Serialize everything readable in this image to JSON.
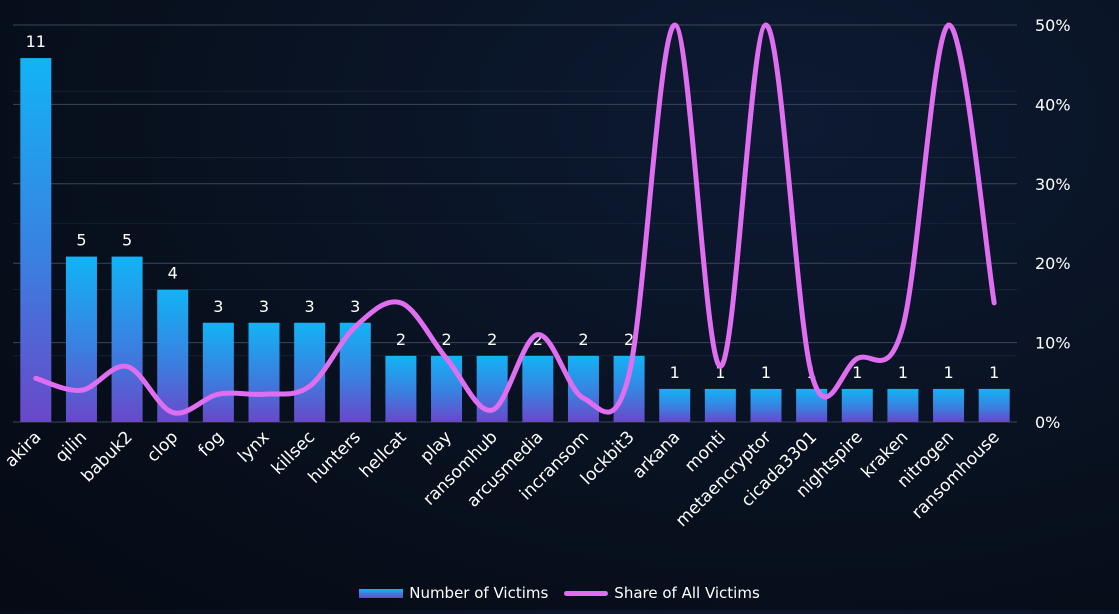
{
  "chart_data": {
    "type": "bar",
    "categories": [
      "akira",
      "qilin",
      "babuk2",
      "clop",
      "fog",
      "lynx",
      "killsec",
      "hunters",
      "hellcat",
      "play",
      "ransomhub",
      "arcusmedia",
      "incransom",
      "lockbit3",
      "arkana",
      "monti",
      "metaencryptor",
      "cicada3301",
      "nightspire",
      "kraken",
      "nitrogen",
      "ransomhouse"
    ],
    "series": [
      {
        "name": "Number of Victims",
        "type": "bar",
        "axis": "left",
        "values": [
          11,
          5,
          5,
          4,
          3,
          3,
          3,
          3,
          2,
          2,
          2,
          2,
          2,
          2,
          1,
          1,
          1,
          1,
          1,
          1,
          1,
          1
        ],
        "data_labels": [
          "11",
          "5",
          "5",
          "4",
          "3",
          "3",
          "3",
          "3",
          "2",
          "2",
          "2",
          "2",
          "2",
          "2",
          "1",
          "1",
          "1",
          "1",
          "1",
          "1",
          "1",
          "1"
        ]
      },
      {
        "name": "Share of All Victims",
        "type": "line",
        "axis": "right",
        "smooth": true,
        "values": [
          5.5,
          4,
          7,
          1.2,
          3.5,
          3.5,
          4.5,
          12,
          15,
          8,
          1.5,
          11,
          3,
          6,
          50,
          7,
          50,
          6,
          8,
          12,
          50,
          15
        ]
      }
    ],
    "y_left_range": [
      0,
      12
    ],
    "y_right_range": [
      0,
      50
    ],
    "y_right_ticks": [
      "0%",
      "10%",
      "20%",
      "30%",
      "40%",
      "50%"
    ],
    "grid": true,
    "legend_position": "bottom",
    "colors": {
      "bar_top": "#12b4f5",
      "bar_bottom": "#6a48c8",
      "line": "#e06ef0",
      "grid": "#3a4658",
      "text": "#ffffff"
    }
  },
  "legend": {
    "bars": "Number of Victims",
    "line": "Share of All Victims"
  }
}
